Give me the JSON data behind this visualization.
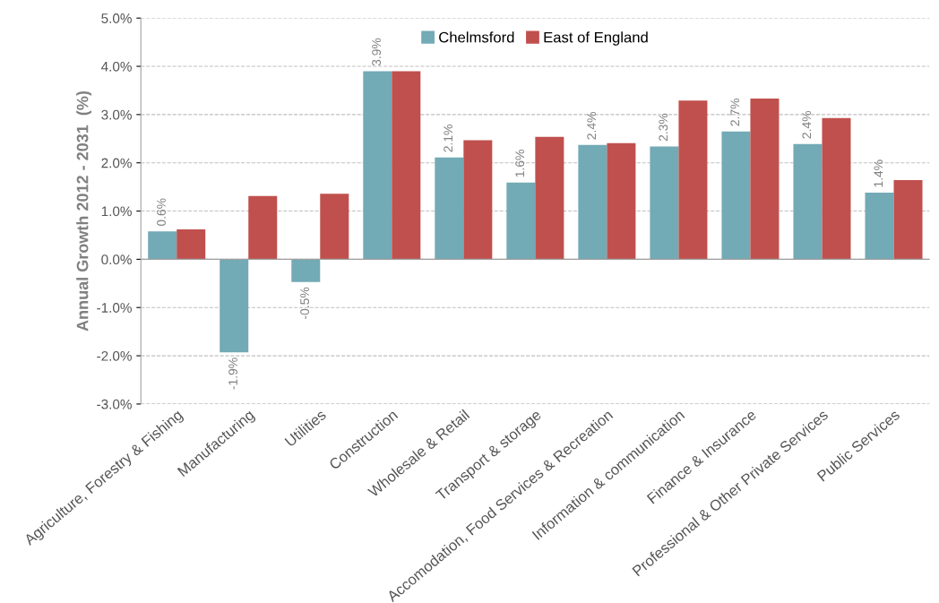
{
  "chart_data": {
    "type": "bar",
    "ylabel": "Annual Growth 2012 - 2031  (%)",
    "categories": [
      "Agriculture, Forestry & Fishing",
      "Manufacturing",
      "Utilities",
      "Construction",
      "Wholesale & Retail",
      "Transport & storage",
      "Accomodation, Food Services & Recreation",
      "Information & communication",
      "Finance & Insurance",
      "Professional & Other Private Services",
      "Public Services"
    ],
    "series": [
      {
        "name": "Chelmsford",
        "color": "#72aab5",
        "values": [
          0.58,
          -1.93,
          -0.47,
          3.9,
          2.11,
          1.59,
          2.37,
          2.34,
          2.65,
          2.39,
          1.38
        ],
        "value_labels": [
          "0.6%",
          "-1.9%",
          "-0.5%",
          "3.9%",
          "2.1%",
          "1.6%",
          "2.4%",
          "2.3%",
          "2.7%",
          "2.4%",
          "1.4%"
        ]
      },
      {
        "name": "East of England",
        "color": "#c0504d",
        "values": [
          0.62,
          1.31,
          1.36,
          3.9,
          2.47,
          2.54,
          2.41,
          3.29,
          3.33,
          2.93,
          1.64
        ]
      }
    ],
    "ylim": [
      -3,
      5
    ],
    "yticks": [
      {
        "value": -3,
        "label": "-3.0%"
      },
      {
        "value": -2,
        "label": "-2.0%"
      },
      {
        "value": -1,
        "label": "-1.0%"
      },
      {
        "value": 0,
        "label": "0.0%"
      },
      {
        "value": 1,
        "label": "1.0%"
      },
      {
        "value": 2,
        "label": "2.0%"
      },
      {
        "value": 3,
        "label": "3.0%"
      },
      {
        "value": 4,
        "label": "4.0%"
      },
      {
        "value": 5,
        "label": "5.0%"
      }
    ],
    "grid": "y",
    "legend": "top"
  }
}
